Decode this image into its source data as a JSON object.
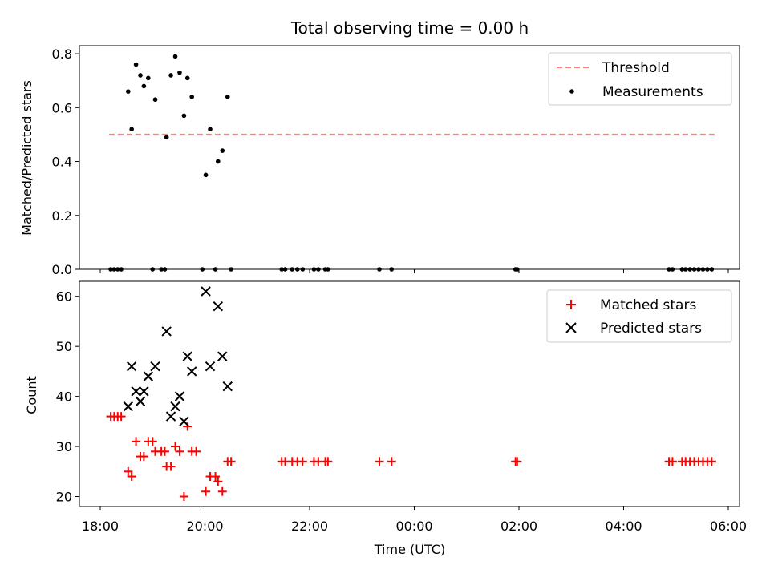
{
  "title": "Total observing time = 0.00 h",
  "chart_data": [
    {
      "type": "scatter",
      "panel": "top",
      "ylabel": "Matched/Predicted stars",
      "xlabel": "",
      "xlim": [
        "18:00",
        "06:15"
      ],
      "ylim": [
        0,
        0.83
      ],
      "yticks": [
        "0.0",
        "0.2",
        "0.4",
        "0.6",
        "0.8"
      ],
      "ytick_values": [
        0,
        0.2,
        0.4,
        0.6,
        0.8
      ],
      "legend_position": "top-right",
      "threshold": {
        "name": "Threshold",
        "value": 0.5,
        "x_start": "18:10",
        "x_end": "05:45",
        "color": "#ff7f7f",
        "style": "dashed"
      },
      "series": [
        {
          "name": "Measurements",
          "color": "#000000",
          "marker": "dot",
          "points": [
            [
              "18:32",
              0.66
            ],
            [
              "18:36",
              0.52
            ],
            [
              "18:41",
              0.76
            ],
            [
              "18:46",
              0.72
            ],
            [
              "18:50",
              0.68
            ],
            [
              "18:55",
              0.71
            ],
            [
              "19:03",
              0.63
            ],
            [
              "19:16",
              0.49
            ],
            [
              "19:21",
              0.72
            ],
            [
              "19:26",
              0.79
            ],
            [
              "19:31",
              0.73
            ],
            [
              "19:36",
              0.57
            ],
            [
              "19:40",
              0.71
            ],
            [
              "19:45",
              0.64
            ],
            [
              "20:01",
              0.35
            ],
            [
              "20:06",
              0.52
            ],
            [
              "20:15",
              0.4
            ],
            [
              "20:20",
              0.44
            ],
            [
              "20:26",
              0.64
            ],
            [
              "18:12",
              0.0
            ],
            [
              "18:16",
              0.0
            ],
            [
              "18:20",
              0.0
            ],
            [
              "18:24",
              0.0
            ],
            [
              "19:00",
              0.0
            ],
            [
              "19:10",
              0.0
            ],
            [
              "19:14",
              0.0
            ],
            [
              "19:57",
              0.0
            ],
            [
              "20:12",
              0.0
            ],
            [
              "20:30",
              0.0
            ],
            [
              "21:28",
              0.0
            ],
            [
              "21:32",
              0.0
            ],
            [
              "21:40",
              0.0
            ],
            [
              "21:46",
              0.0
            ],
            [
              "21:52",
              0.0
            ],
            [
              "22:05",
              0.0
            ],
            [
              "22:10",
              0.0
            ],
            [
              "22:18",
              0.0
            ],
            [
              "22:21",
              0.0
            ],
            [
              "23:20",
              0.0
            ],
            [
              "23:34",
              0.0
            ],
            [
              "01:56",
              0.0
            ],
            [
              "01:58",
              0.0
            ],
            [
              "04:52",
              0.0
            ],
            [
              "04:56",
              0.0
            ],
            [
              "05:07",
              0.0
            ],
            [
              "05:11",
              0.0
            ],
            [
              "05:16",
              0.0
            ],
            [
              "05:21",
              0.0
            ],
            [
              "05:26",
              0.0
            ],
            [
              "05:31",
              0.0
            ],
            [
              "05:36",
              0.0
            ],
            [
              "05:41",
              0.0
            ]
          ]
        }
      ]
    },
    {
      "type": "scatter",
      "panel": "bottom",
      "ylabel": "Count",
      "xlabel": "Time (UTC)",
      "xlim": [
        "18:00",
        "06:15"
      ],
      "ylim": [
        18,
        63
      ],
      "yticks": [
        "20",
        "30",
        "40",
        "50",
        "60"
      ],
      "ytick_values": [
        20,
        30,
        40,
        50,
        60
      ],
      "xticks": [
        "18:00",
        "20:00",
        "22:00",
        "00:00",
        "02:00",
        "04:00",
        "06:00"
      ],
      "legend_position": "top-right",
      "series": [
        {
          "name": "Matched stars",
          "color": "#ff0000",
          "marker": "plus",
          "points": [
            [
              "18:12",
              36
            ],
            [
              "18:16",
              36
            ],
            [
              "18:20",
              36
            ],
            [
              "18:24",
              36
            ],
            [
              "18:32",
              25
            ],
            [
              "18:36",
              24
            ],
            [
              "18:41",
              31
            ],
            [
              "18:46",
              28
            ],
            [
              "18:50",
              28
            ],
            [
              "18:55",
              31
            ],
            [
              "19:00",
              31
            ],
            [
              "19:03",
              29
            ],
            [
              "19:10",
              29
            ],
            [
              "19:14",
              29
            ],
            [
              "19:16",
              26
            ],
            [
              "19:21",
              26
            ],
            [
              "19:26",
              30
            ],
            [
              "19:31",
              29
            ],
            [
              "19:36",
              20
            ],
            [
              "19:40",
              34
            ],
            [
              "19:45",
              29
            ],
            [
              "19:50",
              29
            ],
            [
              "20:01",
              21
            ],
            [
              "20:06",
              24
            ],
            [
              "20:12",
              24
            ],
            [
              "20:15",
              23
            ],
            [
              "20:20",
              21
            ],
            [
              "20:26",
              27
            ],
            [
              "20:30",
              27
            ],
            [
              "21:28",
              27
            ],
            [
              "21:32",
              27
            ],
            [
              "21:40",
              27
            ],
            [
              "21:46",
              27
            ],
            [
              "21:52",
              27
            ],
            [
              "22:05",
              27
            ],
            [
              "22:10",
              27
            ],
            [
              "22:18",
              27
            ],
            [
              "22:21",
              27
            ],
            [
              "23:20",
              27
            ],
            [
              "23:34",
              27
            ],
            [
              "01:56",
              27
            ],
            [
              "01:58",
              27
            ],
            [
              "04:52",
              27
            ],
            [
              "04:56",
              27
            ],
            [
              "05:07",
              27
            ],
            [
              "05:11",
              27
            ],
            [
              "05:16",
              27
            ],
            [
              "05:21",
              27
            ],
            [
              "05:26",
              27
            ],
            [
              "05:31",
              27
            ],
            [
              "05:36",
              27
            ],
            [
              "05:41",
              27
            ]
          ]
        },
        {
          "name": "Predicted stars",
          "color": "#000000",
          "marker": "x",
          "points": [
            [
              "18:32",
              38
            ],
            [
              "18:36",
              46
            ],
            [
              "18:41",
              41
            ],
            [
              "18:46",
              39
            ],
            [
              "18:50",
              41
            ],
            [
              "18:55",
              44
            ],
            [
              "19:03",
              46
            ],
            [
              "19:16",
              53
            ],
            [
              "19:21",
              36
            ],
            [
              "19:26",
              38
            ],
            [
              "19:31",
              40
            ],
            [
              "19:36",
              35
            ],
            [
              "19:40",
              48
            ],
            [
              "19:45",
              45
            ],
            [
              "20:01",
              61
            ],
            [
              "20:06",
              46
            ],
            [
              "20:15",
              58
            ],
            [
              "20:20",
              48
            ],
            [
              "20:26",
              42
            ]
          ]
        }
      ]
    }
  ]
}
